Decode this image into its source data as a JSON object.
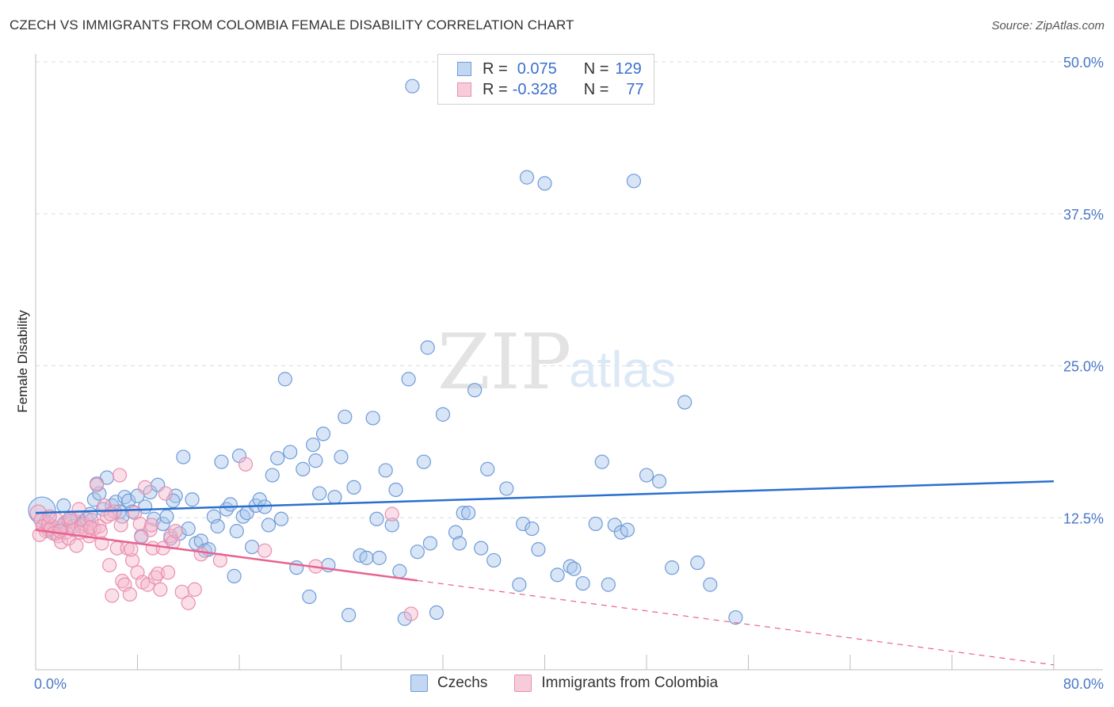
{
  "title": "CZECH VS IMMIGRANTS FROM COLOMBIA FEMALE DISABILITY CORRELATION CHART",
  "source": "Source: ZipAtlas.com",
  "watermark": {
    "zip": "ZIP",
    "atlas": "atlas"
  },
  "legend": {
    "czech": {
      "r_label": "R =",
      "r_value": "0.075",
      "n_label": "N =",
      "n_value": "129"
    },
    "colombia": {
      "r_label": "R =",
      "r_value": "-0.328",
      "n_label": "N =",
      "n_value": "77"
    }
  },
  "bottom_legend": {
    "czech": "Czechs",
    "colombia": "Immigrants from Colombia"
  },
  "colors": {
    "czech_fill": "#a9c6ec",
    "czech_stroke": "#6f9bd8",
    "czech_line": "#2a6fd0",
    "colombia_fill": "#f4b8cc",
    "colombia_stroke": "#ea8fae",
    "colombia_line": "#e8628f",
    "grid": "#dcdcdc",
    "tick_label": "#4a78c8"
  },
  "chart_data": {
    "type": "scatter",
    "title": "CZECH VS IMMIGRANTS FROM COLOMBIA FEMALE DISABILITY CORRELATION CHART",
    "xlabel": "",
    "ylabel": "Female Disability",
    "xlim": [
      0,
      80
    ],
    "ylim": [
      0,
      50
    ],
    "x_tick_labels": [
      "0.0%",
      "80.0%"
    ],
    "y_tick_labels": [
      "12.5%",
      "25.0%",
      "37.5%",
      "50.0%"
    ],
    "y_ticks": [
      12.5,
      25.0,
      37.5,
      50.0
    ],
    "series": [
      {
        "name": "Czechs",
        "r": 0.075,
        "n": 129,
        "trend": {
          "x0": 0,
          "y0": 12.9,
          "x1": 80,
          "y1": 15.5,
          "dashed_from": null
        },
        "points": [
          [
            0.5,
            13.1
          ],
          [
            0.8,
            12.2
          ],
          [
            1.0,
            11.5
          ],
          [
            1.3,
            11.8
          ],
          [
            1.6,
            11.2
          ],
          [
            2.0,
            11.6
          ],
          [
            2.3,
            12.1
          ],
          [
            2.6,
            12.3
          ],
          [
            3.0,
            11.8
          ],
          [
            3.3,
            12.5
          ],
          [
            3.6,
            12.0
          ],
          [
            4.0,
            12.4
          ],
          [
            4.3,
            12.8
          ],
          [
            4.6,
            14.0
          ],
          [
            5.0,
            14.5
          ],
          [
            5.3,
            13.2
          ],
          [
            5.6,
            15.8
          ],
          [
            6.0,
            13.5
          ],
          [
            6.3,
            13.8
          ],
          [
            6.6,
            13.0
          ],
          [
            7.0,
            14.2
          ],
          [
            7.3,
            13.9
          ],
          [
            7.6,
            13.0
          ],
          [
            8.0,
            14.3
          ],
          [
            8.3,
            11.0
          ],
          [
            8.6,
            13.4
          ],
          [
            9.0,
            14.6
          ],
          [
            9.3,
            12.4
          ],
          [
            9.6,
            15.2
          ],
          [
            10.0,
            12.0
          ],
          [
            10.3,
            12.6
          ],
          [
            10.6,
            10.8
          ],
          [
            11.0,
            14.3
          ],
          [
            11.3,
            11.2
          ],
          [
            11.6,
            17.5
          ],
          [
            12.0,
            11.6
          ],
          [
            12.3,
            14.0
          ],
          [
            12.6,
            10.4
          ],
          [
            13.0,
            10.6
          ],
          [
            13.3,
            9.8
          ],
          [
            13.6,
            9.9
          ],
          [
            14.0,
            12.6
          ],
          [
            14.3,
            11.8
          ],
          [
            14.6,
            17.1
          ],
          [
            15.0,
            13.2
          ],
          [
            15.3,
            13.6
          ],
          [
            15.6,
            7.7
          ],
          [
            16.0,
            17.6
          ],
          [
            16.3,
            12.6
          ],
          [
            16.6,
            12.9
          ],
          [
            17.0,
            10.1
          ],
          [
            17.3,
            13.5
          ],
          [
            17.6,
            14.0
          ],
          [
            18.0,
            13.4
          ],
          [
            18.3,
            11.9
          ],
          [
            18.6,
            16.0
          ],
          [
            19.0,
            17.4
          ],
          [
            19.3,
            12.4
          ],
          [
            19.6,
            23.9
          ],
          [
            20.0,
            17.9
          ],
          [
            20.5,
            8.4
          ],
          [
            21.0,
            16.5
          ],
          [
            21.5,
            6.0
          ],
          [
            22.0,
            17.2
          ],
          [
            22.3,
            14.5
          ],
          [
            22.6,
            19.4
          ],
          [
            23.0,
            8.6
          ],
          [
            23.5,
            14.2
          ],
          [
            24.0,
            17.5
          ],
          [
            24.3,
            20.8
          ],
          [
            24.6,
            4.5
          ],
          [
            25.0,
            15.0
          ],
          [
            25.5,
            9.4
          ],
          [
            26.0,
            9.2
          ],
          [
            26.5,
            20.7
          ],
          [
            27.0,
            9.2
          ],
          [
            27.5,
            16.4
          ],
          [
            28.0,
            11.9
          ],
          [
            28.3,
            14.8
          ],
          [
            28.6,
            8.1
          ],
          [
            29.0,
            4.2
          ],
          [
            29.3,
            23.9
          ],
          [
            29.6,
            48.0
          ],
          [
            30.0,
            9.7
          ],
          [
            30.5,
            17.1
          ],
          [
            30.8,
            26.5
          ],
          [
            31.0,
            10.4
          ],
          [
            31.5,
            4.7
          ],
          [
            32.0,
            21.0
          ],
          [
            33.0,
            11.3
          ],
          [
            33.3,
            10.4
          ],
          [
            33.6,
            12.9
          ],
          [
            34.0,
            12.9
          ],
          [
            34.5,
            23.0
          ],
          [
            35.0,
            10.0
          ],
          [
            35.5,
            16.5
          ],
          [
            36.0,
            9.0
          ],
          [
            38.0,
            7.0
          ],
          [
            38.3,
            12.0
          ],
          [
            38.6,
            40.5
          ],
          [
            39.0,
            11.6
          ],
          [
            39.5,
            9.9
          ],
          [
            40.0,
            40.0
          ],
          [
            41.0,
            7.8
          ],
          [
            42.0,
            8.5
          ],
          [
            42.3,
            8.3
          ],
          [
            43.0,
            7.1
          ],
          [
            44.0,
            12.0
          ],
          [
            44.5,
            17.1
          ],
          [
            45.0,
            7.0
          ],
          [
            45.5,
            11.9
          ],
          [
            46.0,
            11.3
          ],
          [
            46.5,
            11.5
          ],
          [
            47.0,
            40.2
          ],
          [
            48.0,
            16.0
          ],
          [
            49.0,
            15.5
          ],
          [
            50.0,
            8.4
          ],
          [
            51.0,
            22.0
          ],
          [
            52.0,
            8.8
          ],
          [
            53.0,
            7.0
          ],
          [
            55.0,
            4.3
          ],
          [
            2.2,
            13.5
          ],
          [
            4.8,
            15.3
          ],
          [
            6.8,
            12.6
          ],
          [
            10.8,
            13.9
          ],
          [
            15.8,
            11.4
          ],
          [
            21.8,
            18.5
          ],
          [
            26.8,
            12.4
          ],
          [
            37.0,
            14.9
          ]
        ]
      },
      {
        "name": "Immigrants from Colombia",
        "r": -0.328,
        "n": 77,
        "trend": {
          "x0": 0,
          "y0": 11.5,
          "x1": 80,
          "y1": 0.4,
          "dashed_from": 30
        },
        "points": [
          [
            0.2,
            12.9
          ],
          [
            0.4,
            12.3
          ],
          [
            0.6,
            11.8
          ],
          [
            0.8,
            11.4
          ],
          [
            1.0,
            12.0
          ],
          [
            1.2,
            11.6
          ],
          [
            1.4,
            11.2
          ],
          [
            1.6,
            12.4
          ],
          [
            1.8,
            11.0
          ],
          [
            2.0,
            10.5
          ],
          [
            2.2,
            11.9
          ],
          [
            2.4,
            11.3
          ],
          [
            2.6,
            10.8
          ],
          [
            2.8,
            12.2
          ],
          [
            3.0,
            11.5
          ],
          [
            3.2,
            10.2
          ],
          [
            3.4,
            13.2
          ],
          [
            3.6,
            11.8
          ],
          [
            3.8,
            12.0
          ],
          [
            4.0,
            11.4
          ],
          [
            4.2,
            11.0
          ],
          [
            4.4,
            12.3
          ],
          [
            4.6,
            11.6
          ],
          [
            4.8,
            15.2
          ],
          [
            5.0,
            11.8
          ],
          [
            5.2,
            10.4
          ],
          [
            5.4,
            13.5
          ],
          [
            5.6,
            12.6
          ],
          [
            5.8,
            8.6
          ],
          [
            6.0,
            6.1
          ],
          [
            6.2,
            13.0
          ],
          [
            6.4,
            10.0
          ],
          [
            6.6,
            16.0
          ],
          [
            6.8,
            7.3
          ],
          [
            7.0,
            7.0
          ],
          [
            7.2,
            10.0
          ],
          [
            7.4,
            6.2
          ],
          [
            7.6,
            9.0
          ],
          [
            7.8,
            12.9
          ],
          [
            8.0,
            8.0
          ],
          [
            8.2,
            12.0
          ],
          [
            8.4,
            7.2
          ],
          [
            8.6,
            15.0
          ],
          [
            8.8,
            7.0
          ],
          [
            9.0,
            11.5
          ],
          [
            9.2,
            10.0
          ],
          [
            9.4,
            7.6
          ],
          [
            9.6,
            7.9
          ],
          [
            9.8,
            6.6
          ],
          [
            10.0,
            10.0
          ],
          [
            10.2,
            14.5
          ],
          [
            10.4,
            8.0
          ],
          [
            10.6,
            11.0
          ],
          [
            10.8,
            10.5
          ],
          [
            11.0,
            11.4
          ],
          [
            11.5,
            6.4
          ],
          [
            12.0,
            5.5
          ],
          [
            12.5,
            6.6
          ],
          [
            13.0,
            9.5
          ],
          [
            14.5,
            9.0
          ],
          [
            16.5,
            16.9
          ],
          [
            18.0,
            9.8
          ],
          [
            22.0,
            8.5
          ],
          [
            28.0,
            12.8
          ],
          [
            29.5,
            4.6
          ],
          [
            0.3,
            11.1
          ],
          [
            1.1,
            12.6
          ],
          [
            1.9,
            11.4
          ],
          [
            2.7,
            12.5
          ],
          [
            3.5,
            11.3
          ],
          [
            4.3,
            11.7
          ],
          [
            5.1,
            11.4
          ],
          [
            5.9,
            12.8
          ],
          [
            6.7,
            11.9
          ],
          [
            7.5,
            9.9
          ],
          [
            8.3,
            10.9
          ],
          [
            9.1,
            11.9
          ]
        ]
      }
    ]
  }
}
